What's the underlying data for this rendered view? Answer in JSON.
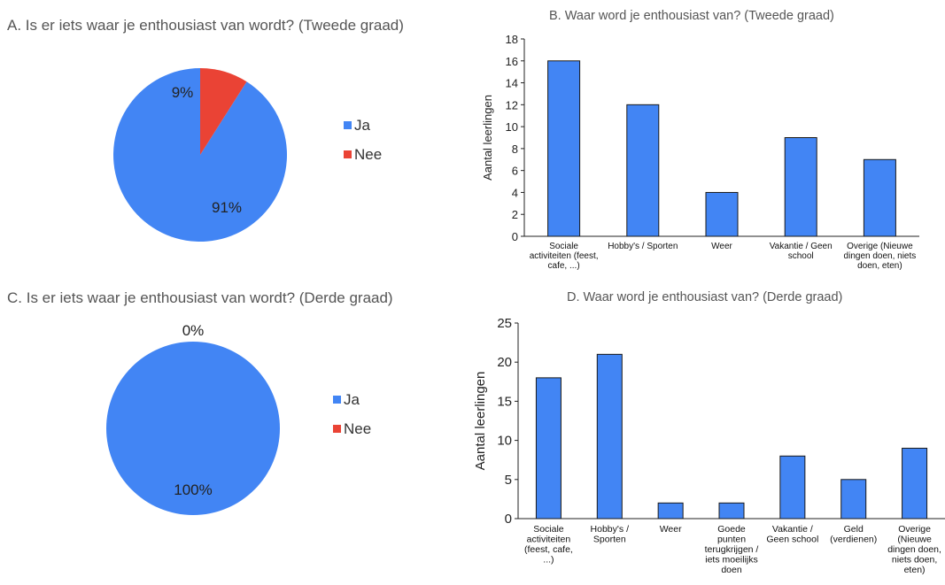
{
  "chart_data": [
    {
      "type": "pie",
      "title": "A. Is er iets waar je enthousiast van wordt? (Tweede graad)",
      "slices": [
        {
          "label": "Ja",
          "value": 91,
          "display": "91%",
          "color": "#4285f4"
        },
        {
          "label": "Nee",
          "value": 9,
          "display": "9%",
          "color": "#ea4335"
        }
      ],
      "legend_position": "right"
    },
    {
      "type": "bar",
      "title": "B. Waar word je enthousiast van? (Tweede graad)",
      "ylabel": "Aantal leerlingen",
      "xlabel": "",
      "ylim": [
        0,
        18
      ],
      "yticks": [
        0,
        2,
        4,
        6,
        8,
        10,
        12,
        14,
        16,
        18
      ],
      "categories": [
        [
          "Sociale",
          "activiteiten (feest,",
          "cafe, ...)"
        ],
        [
          "Hobby's / Sporten"
        ],
        [
          "Weer"
        ],
        [
          "Vakantie / Geen",
          "school"
        ],
        [
          "Overige (Nieuwe",
          "dingen doen, niets",
          "doen, eten)"
        ]
      ],
      "values": [
        16,
        12,
        4,
        9,
        7
      ],
      "color": "#4285f4",
      "grid": false
    },
    {
      "type": "pie",
      "title": "C. Is er iets waar je enthousiast van wordt? (Derde graad)",
      "slices": [
        {
          "label": "Ja",
          "value": 100,
          "display": "100%",
          "color": "#4285f4"
        },
        {
          "label": "Nee",
          "value": 0,
          "display": "0%",
          "color": "#ea4335"
        }
      ],
      "legend_position": "right"
    },
    {
      "type": "bar",
      "title": "D. Waar word je enthousiast van? (Derde graad)",
      "ylabel": "Aantal leerlingen",
      "xlabel": "",
      "ylim": [
        0,
        25
      ],
      "yticks": [
        0,
        5,
        10,
        15,
        20,
        25
      ],
      "categories": [
        [
          "Sociale",
          "activiteiten",
          "(feest, cafe,",
          "...)"
        ],
        [
          "Hobby's /",
          "Sporten"
        ],
        [
          "Weer"
        ],
        [
          "Goede",
          "punten",
          "terugkrijgen /",
          "iets moeilijks",
          "doen"
        ],
        [
          "Vakantie /",
          "Geen school"
        ],
        [
          "Geld",
          "(verdienen)"
        ],
        [
          "Overige",
          "(Nieuwe",
          "dingen doen,",
          "niets doen,",
          "eten)"
        ]
      ],
      "values": [
        18,
        21,
        2,
        2,
        8,
        5,
        9
      ],
      "color": "#4285f4",
      "grid": false
    }
  ]
}
